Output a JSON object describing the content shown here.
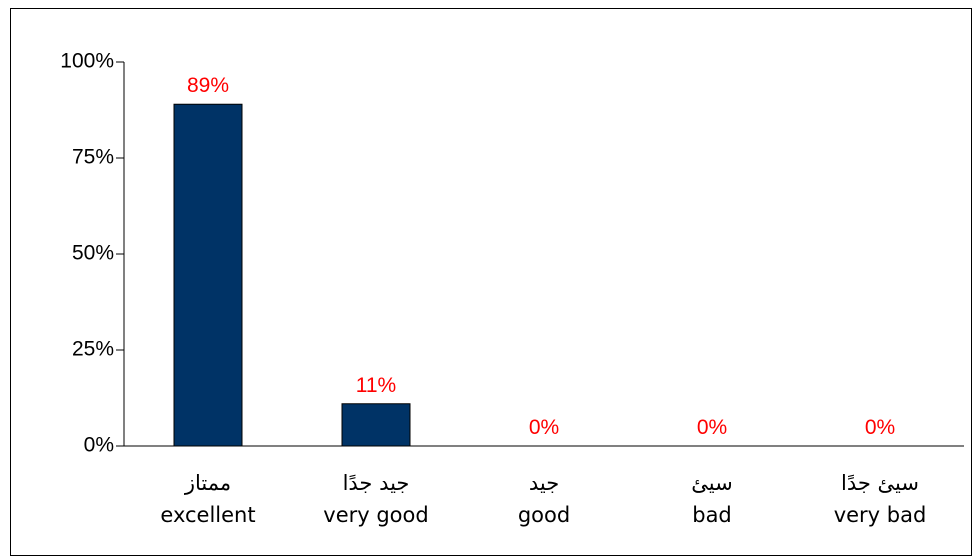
{
  "chart_data": {
    "type": "bar",
    "categories": [
      {
        "ar": "ممتاز",
        "en": "excellent"
      },
      {
        "ar": "جيد جدًا",
        "en": "very good"
      },
      {
        "ar": "جيد",
        "en": "good"
      },
      {
        "ar": "سيئ",
        "en": "bad"
      },
      {
        "ar": "سيئ جدًا",
        "en": "very bad"
      }
    ],
    "values": [
      89,
      11,
      0,
      0,
      0
    ],
    "data_labels": [
      "89%",
      "11%",
      "0%",
      "0%",
      "0%"
    ],
    "y_ticks": [
      {
        "value": 0,
        "label": "0%"
      },
      {
        "value": 25,
        "label": "25%"
      },
      {
        "value": 50,
        "label": "50%"
      },
      {
        "value": 75,
        "label": "75%"
      },
      {
        "value": 100,
        "label": "100%"
      }
    ],
    "ylim": [
      0,
      100
    ],
    "grid": false,
    "legend": "none",
    "title": "",
    "xlabel": "",
    "ylabel": "",
    "colors": {
      "bar": "#003366",
      "data_label": "#ff0000",
      "axis": "#000000"
    }
  }
}
